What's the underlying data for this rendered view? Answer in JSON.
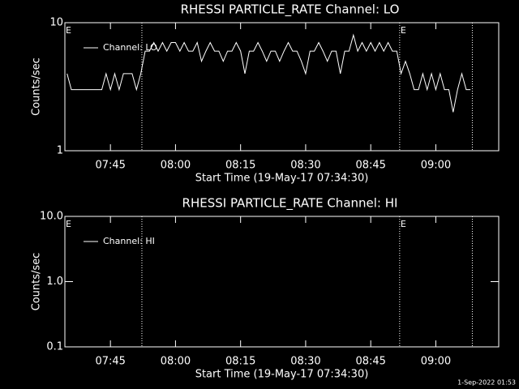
{
  "chart_data": [
    {
      "type": "line",
      "title": "RHESSI PARTICLE_RATE Channel: LO",
      "xlabel": "Start Time (19-May-17 07:34:30)",
      "ylabel": "Counts/sec",
      "log_y": true,
      "ylim": [
        1,
        10
      ],
      "yticks": [
        1,
        10
      ],
      "xlim": [
        "07:34:30",
        "09:14:30"
      ],
      "xticks": [
        "07:45",
        "08:00",
        "08:15",
        "08:30",
        "08:45",
        "09:00"
      ],
      "vlines": [
        "07:52:15",
        "08:51:40",
        "09:08:25"
      ],
      "event_labels": [
        {
          "text": "E",
          "x": "07:34:30"
        },
        {
          "text": "E",
          "x": "08:51:40"
        }
      ],
      "x": [
        "07:35",
        "07:36",
        "07:37",
        "07:38",
        "07:39",
        "07:40",
        "07:41",
        "07:42",
        "07:43",
        "07:44",
        "07:45",
        "07:46",
        "07:47",
        "07:48",
        "07:49",
        "07:50",
        "07:51",
        "07:52",
        "07:53",
        "07:54",
        "07:55",
        "07:56",
        "07:57",
        "07:58",
        "07:59",
        "08:00",
        "08:01",
        "08:02",
        "08:03",
        "08:04",
        "08:05",
        "08:06",
        "08:07",
        "08:08",
        "08:09",
        "08:10",
        "08:11",
        "08:12",
        "08:13",
        "08:14",
        "08:15",
        "08:16",
        "08:17",
        "08:18",
        "08:19",
        "08:20",
        "08:21",
        "08:22",
        "08:23",
        "08:24",
        "08:25",
        "08:26",
        "08:27",
        "08:28",
        "08:29",
        "08:30",
        "08:31",
        "08:32",
        "08:33",
        "08:34",
        "08:35",
        "08:36",
        "08:37",
        "08:38",
        "08:39",
        "08:40",
        "08:41",
        "08:42",
        "08:43",
        "08:44",
        "08:45",
        "08:46",
        "08:47",
        "08:48",
        "08:49",
        "08:50",
        "08:51",
        "08:52",
        "08:53",
        "08:54",
        "08:55",
        "08:56",
        "08:57",
        "08:58",
        "08:59",
        "09:00",
        "09:01",
        "09:02",
        "09:03",
        "09:04",
        "09:05",
        "09:06",
        "09:07",
        "09:08"
      ],
      "series": [
        {
          "name": "Channel: LO",
          "color": "#ffffff",
          "values": [
            4,
            3,
            3,
            3,
            3,
            3,
            3,
            3,
            3,
            4,
            3,
            4,
            3,
            4,
            4,
            4,
            3,
            4,
            6,
            6,
            7,
            6,
            7,
            6,
            7,
            7,
            6,
            7,
            6,
            6,
            7,
            5,
            6,
            7,
            6,
            6,
            5,
            6,
            6,
            7,
            6,
            4,
            6,
            6,
            7,
            6,
            5,
            6,
            6,
            5,
            6,
            7,
            6,
            6,
            5,
            4,
            6,
            6,
            7,
            6,
            5,
            6,
            6,
            4,
            6,
            6,
            8,
            6,
            7,
            6,
            7,
            6,
            7,
            6,
            7,
            6,
            6,
            4,
            5,
            4,
            3,
            3,
            4,
            3,
            4,
            3,
            4,
            3,
            3,
            2,
            3,
            4,
            3,
            3
          ]
        }
      ]
    },
    {
      "type": "line",
      "title": "RHESSI PARTICLE_RATE Channel: HI",
      "xlabel": "Start Time (19-May-17 07:34:30)",
      "ylabel": "Counts/sec",
      "log_y": true,
      "ylim": [
        0.1,
        10
      ],
      "yticks": [
        {
          "value": 0.1,
          "label": "0.1"
        },
        {
          "value": 1,
          "label": "1.0"
        },
        {
          "value": 10,
          "label": "10.0"
        }
      ],
      "xlim": [
        "07:34:30",
        "09:14:30"
      ],
      "xticks": [
        "07:45",
        "08:00",
        "08:15",
        "08:30",
        "08:45",
        "09:00"
      ],
      "vlines": [
        "07:52:15",
        "08:51:40",
        "09:08:25"
      ],
      "event_labels": [
        {
          "text": "E",
          "x": "07:34:30"
        },
        {
          "text": "E",
          "x": "08:51:40"
        }
      ],
      "x": [],
      "series": [
        {
          "name": "Channel: HI",
          "color": "#ffffff",
          "values": []
        }
      ]
    }
  ],
  "footer": "1-Sep-2022 01:53"
}
